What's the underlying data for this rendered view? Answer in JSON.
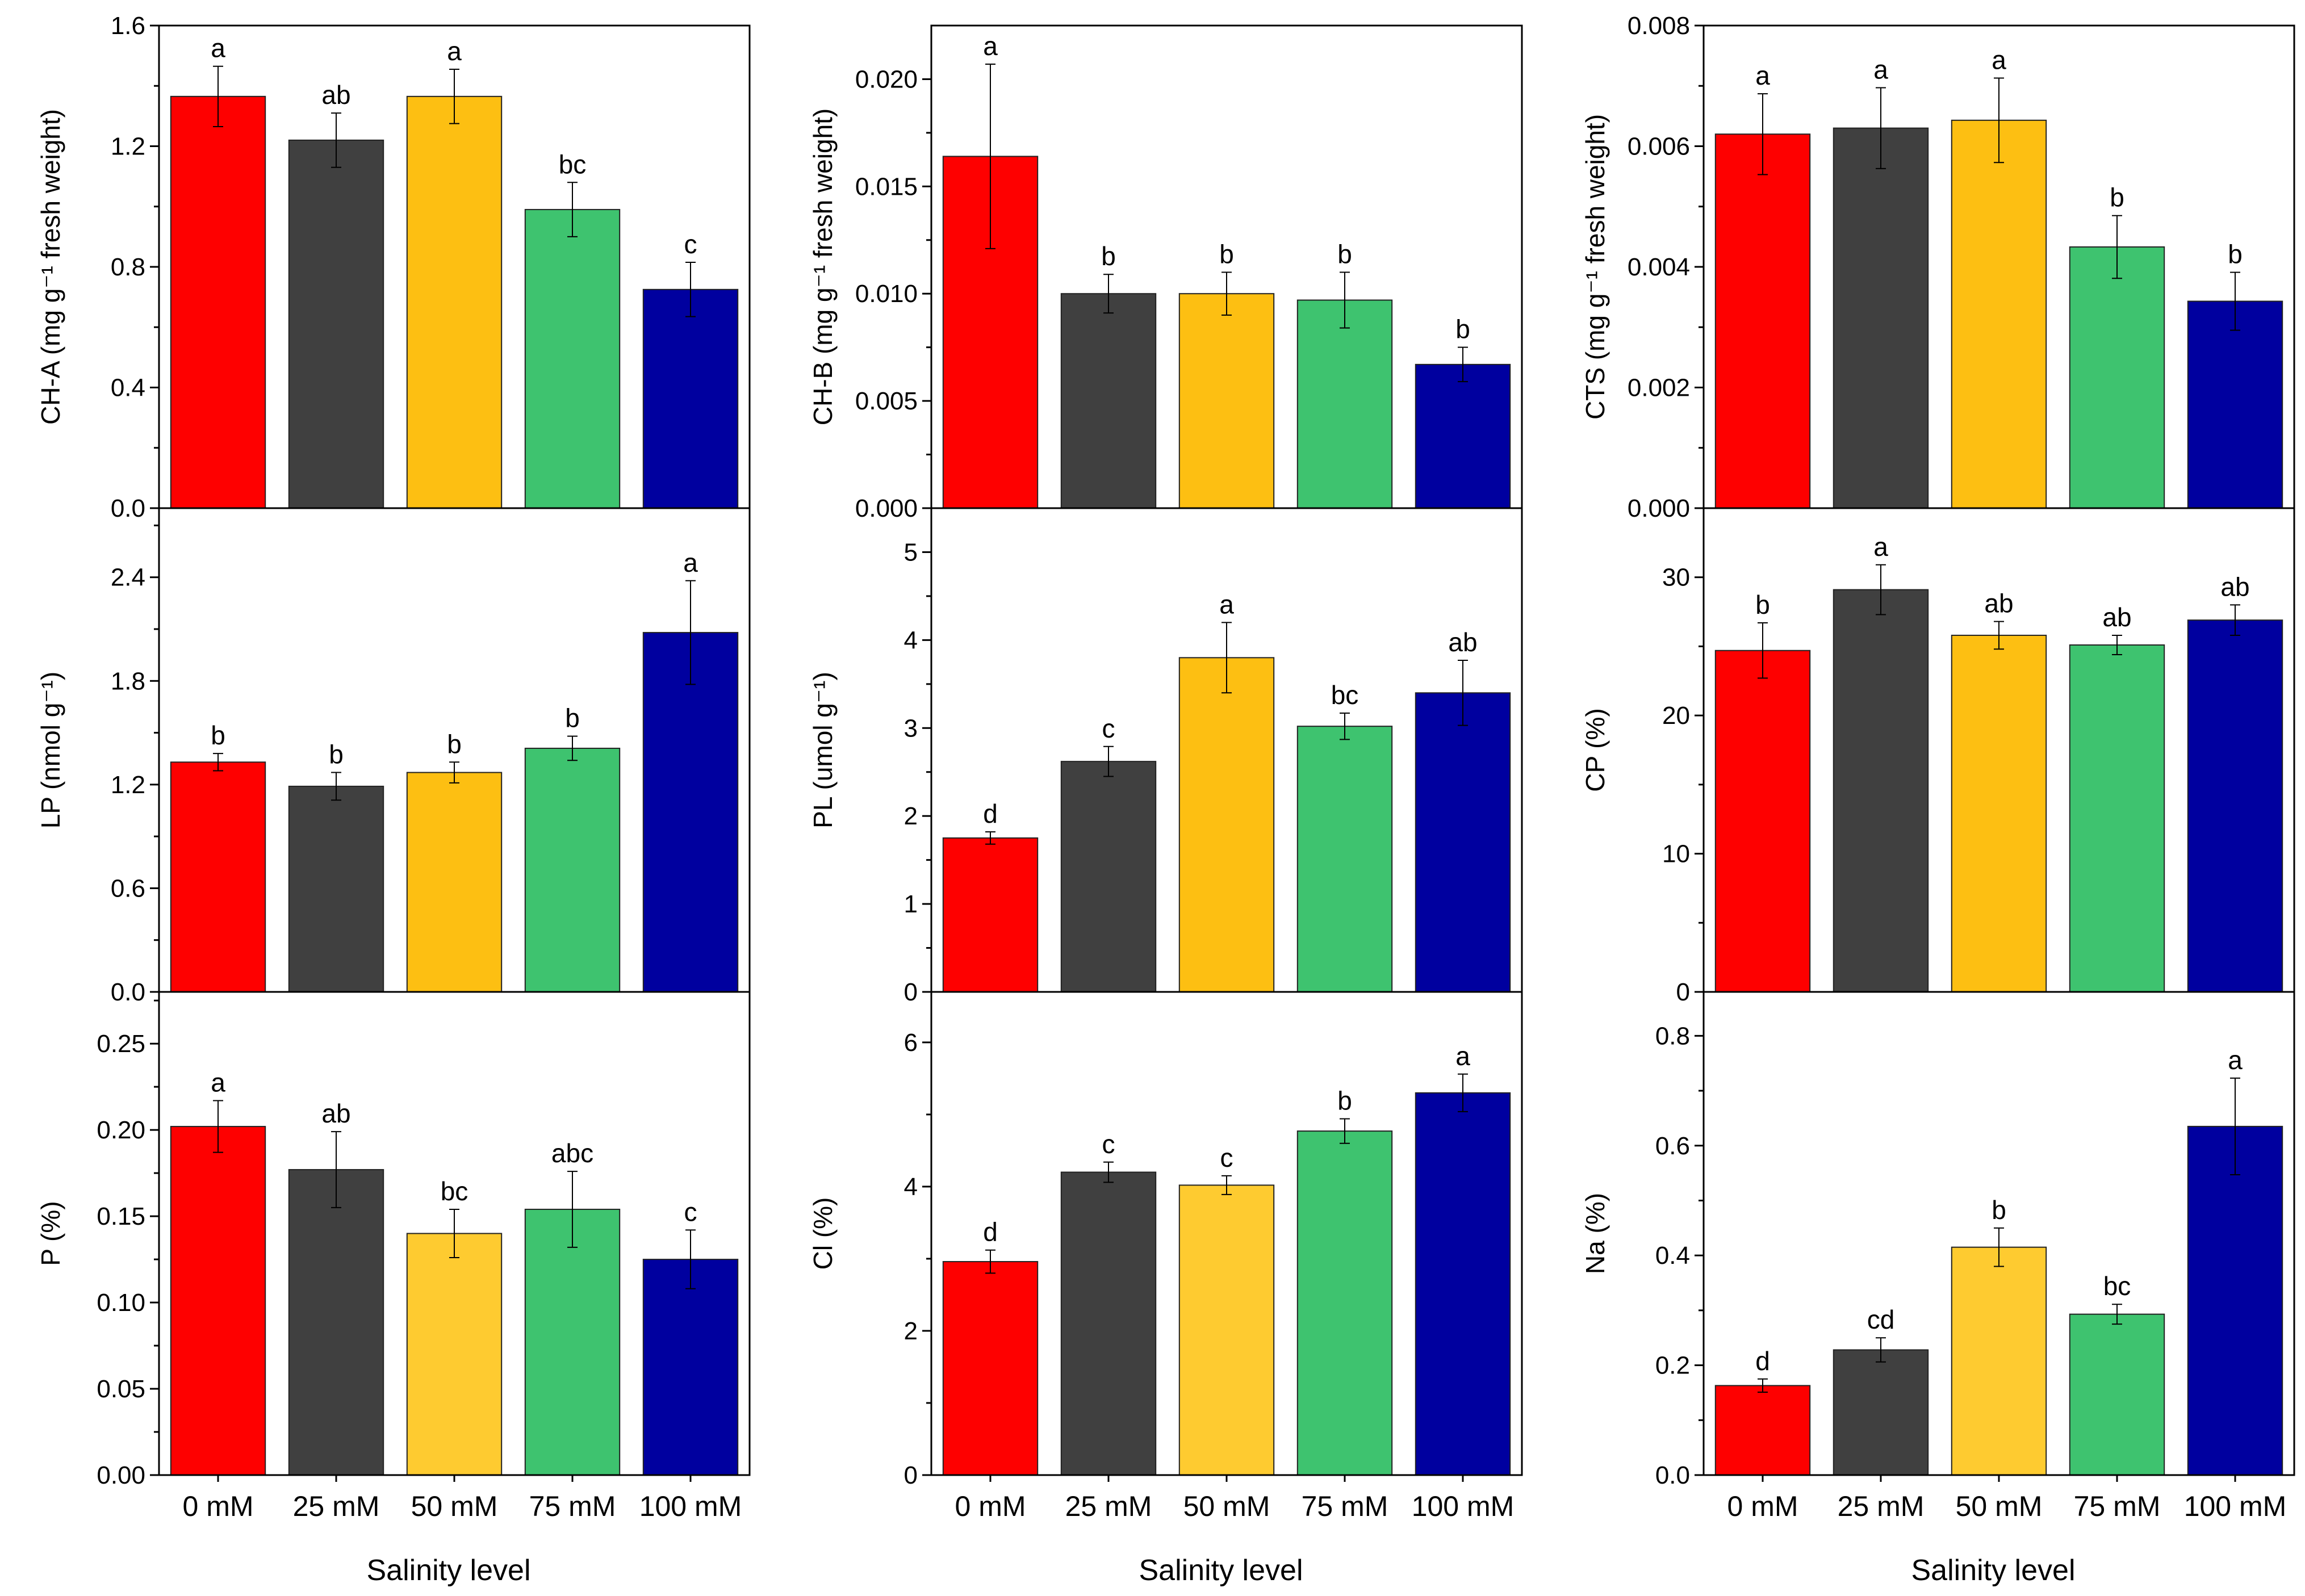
{
  "x_title": "Salinity level",
  "chart_data": [
    {
      "type": "bar",
      "categories": [
        "0 mM",
        "25 mM",
        "50 mM",
        "75 mM",
        "100 mM"
      ],
      "ylabel": "CH-A (mg g⁻¹ fresh weight)",
      "ylim": [
        0,
        1.6
      ],
      "yticks": [
        0.0,
        0.4,
        0.8,
        1.2,
        1.6
      ],
      "ytick_labels": [
        "0.0",
        "0.4",
        "0.8",
        "1.2",
        "1.6"
      ],
      "values": [
        1.365,
        1.22,
        1.365,
        0.99,
        0.725
      ],
      "errors": [
        0.1,
        0.09,
        0.09,
        0.09,
        0.09
      ],
      "significance": [
        "a",
        "ab",
        "a",
        "bc",
        "c"
      ]
    },
    {
      "type": "bar",
      "categories": [
        "0 mM",
        "25 mM",
        "50 mM",
        "75 mM",
        "100 mM"
      ],
      "ylabel": "CH-B (mg g⁻¹ fresh weight)",
      "ylim": [
        0,
        0.0225
      ],
      "yticks": [
        0.0,
        0.005,
        0.01,
        0.015,
        0.02
      ],
      "ytick_labels": [
        "0.000",
        "0.005",
        "0.010",
        "0.015",
        "0.020"
      ],
      "values": [
        0.0164,
        0.01,
        0.01,
        0.0097,
        0.0067
      ],
      "errors": [
        0.0043,
        0.0009,
        0.001,
        0.0013,
        0.0008
      ],
      "significance": [
        "a",
        "b",
        "b",
        "b",
        "b"
      ]
    },
    {
      "type": "bar",
      "categories": [
        "0 mM",
        "25 mM",
        "50 mM",
        "75 mM",
        "100 mM"
      ],
      "ylabel": "CTS (mg g⁻¹ fresh weight)",
      "ylim": [
        0,
        0.008
      ],
      "yticks": [
        0.0,
        0.002,
        0.004,
        0.006,
        0.008
      ],
      "ytick_labels": [
        "0.000",
        "0.002",
        "0.004",
        "0.006",
        "0.008"
      ],
      "values": [
        0.0062,
        0.0063,
        0.00643,
        0.00433,
        0.00343
      ],
      "errors": [
        0.00067,
        0.00067,
        0.0007,
        0.00052,
        0.00048
      ],
      "significance": [
        "a",
        "a",
        "a",
        "b",
        "b"
      ]
    },
    {
      "type": "bar",
      "categories": [
        "0 mM",
        "25 mM",
        "50 mM",
        "75 mM",
        "100 mM"
      ],
      "ylabel": "LP (nmol g⁻¹)",
      "ylim": [
        0,
        2.8
      ],
      "yticks": [
        0.0,
        0.6,
        1.2,
        1.8,
        2.4
      ],
      "ytick_labels": [
        "0.0",
        "0.6",
        "1.2",
        "1.8",
        "2.4"
      ],
      "values": [
        1.33,
        1.19,
        1.27,
        1.41,
        2.08
      ],
      "errors": [
        0.05,
        0.08,
        0.06,
        0.07,
        0.3
      ],
      "significance": [
        "b",
        "b",
        "b",
        "b",
        "a"
      ]
    },
    {
      "type": "bar",
      "categories": [
        "0 mM",
        "25 mM",
        "50 mM",
        "75 mM",
        "100 mM"
      ],
      "ylabel": "PL (umol g⁻¹)",
      "ylim": [
        0,
        5.5
      ],
      "yticks": [
        0,
        1,
        2,
        3,
        4,
        5
      ],
      "ytick_labels": [
        "0",
        "1",
        "2",
        "3",
        "4",
        "5"
      ],
      "values": [
        1.75,
        2.62,
        3.8,
        3.02,
        3.4
      ],
      "errors": [
        0.07,
        0.17,
        0.4,
        0.15,
        0.37
      ],
      "significance": [
        "d",
        "c",
        "a",
        "bc",
        "ab"
      ]
    },
    {
      "type": "bar",
      "categories": [
        "0 mM",
        "25 mM",
        "50 mM",
        "75 mM",
        "100 mM"
      ],
      "ylabel": "CP (%)",
      "ylim": [
        0,
        35
      ],
      "yticks": [
        0,
        10,
        20,
        30
      ],
      "ytick_labels": [
        "0",
        "10",
        "20",
        "30"
      ],
      "values": [
        24.7,
        29.1,
        25.8,
        25.1,
        26.9
      ],
      "errors": [
        2.0,
        1.8,
        1.0,
        0.7,
        1.1
      ],
      "significance": [
        "b",
        "a",
        "ab",
        "ab",
        "ab"
      ]
    },
    {
      "type": "bar",
      "categories": [
        "0 mM",
        "25 mM",
        "50 mM",
        "75 mM",
        "100 mM"
      ],
      "ylabel": "P (%)",
      "ylim": [
        0,
        0.28
      ],
      "yticks": [
        0.0,
        0.05,
        0.1,
        0.15,
        0.2,
        0.25
      ],
      "ytick_labels": [
        "0.00",
        "0.05",
        "0.10",
        "0.15",
        "0.20",
        "0.25"
      ],
      "values": [
        0.202,
        0.177,
        0.14,
        0.154,
        0.125
      ],
      "errors": [
        0.015,
        0.022,
        0.014,
        0.022,
        0.017
      ],
      "significance": [
        "a",
        "ab",
        "bc",
        "abc",
        "c"
      ]
    },
    {
      "type": "bar",
      "categories": [
        "0 mM",
        "25 mM",
        "50 mM",
        "75 mM",
        "100 mM"
      ],
      "ylabel": "Cl (%)",
      "ylim": [
        0,
        6.7
      ],
      "yticks": [
        0,
        2,
        4,
        6
      ],
      "ytick_labels": [
        "0",
        "2",
        "4",
        "6"
      ],
      "values": [
        2.96,
        4.2,
        4.02,
        4.77,
        5.3
      ],
      "errors": [
        0.16,
        0.14,
        0.13,
        0.17,
        0.26
      ],
      "significance": [
        "d",
        "c",
        "c",
        "b",
        "a"
      ]
    },
    {
      "type": "bar",
      "categories": [
        "0 mM",
        "25 mM",
        "50 mM",
        "75 mM",
        "100 mM"
      ],
      "ylabel": "Na (%)",
      "ylim": [
        0,
        0.88
      ],
      "yticks": [
        0.0,
        0.2,
        0.4,
        0.6,
        0.8
      ],
      "ytick_labels": [
        "0.0",
        "0.2",
        "0.4",
        "0.6",
        "0.8"
      ],
      "values": [
        0.163,
        0.228,
        0.415,
        0.293,
        0.635
      ],
      "errors": [
        0.012,
        0.022,
        0.035,
        0.018,
        0.088
      ],
      "significance": [
        "d",
        "cd",
        "b",
        "bc",
        "a"
      ]
    }
  ],
  "colors": {
    "row1": [
      "#fe0000",
      "#404040",
      "#fdbf12",
      "#3ec36f",
      "#00009f"
    ],
    "row3": [
      "#fe0000",
      "#404040",
      "#fecb30",
      "#3ec36f",
      "#00009f"
    ]
  }
}
